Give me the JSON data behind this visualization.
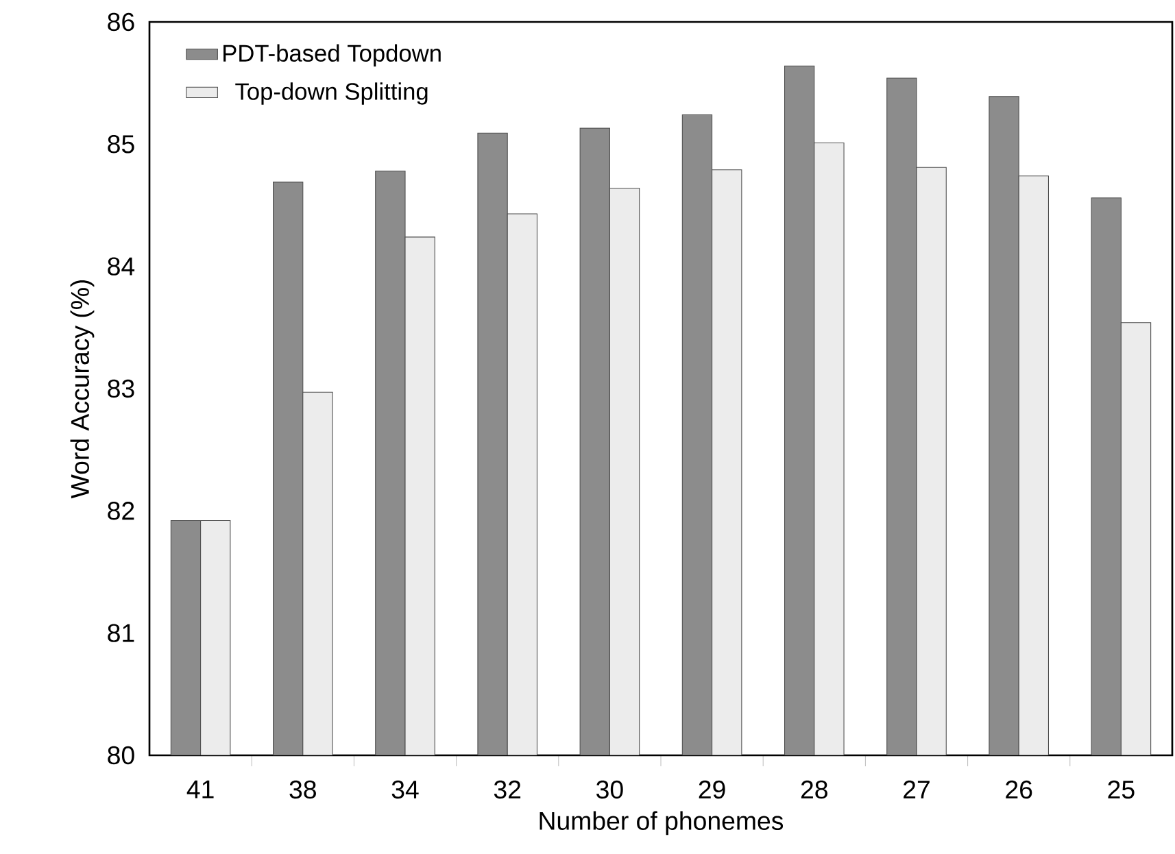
{
  "chart_data": {
    "type": "bar",
    "xlabel": "Number of phonemes",
    "ylabel": "Word Accuracy (%)",
    "categories": [
      "41",
      "38",
      "34",
      "32",
      "30",
      "29",
      "28",
      "27",
      "26",
      "25"
    ],
    "series": [
      {
        "name": "PDT-based Topdown",
        "color": "#8c8c8c",
        "values": [
          81.92,
          84.69,
          84.78,
          85.09,
          85.13,
          85.24,
          85.64,
          85.54,
          85.39,
          84.56
        ]
      },
      {
        "name": "Top-down Splitting",
        "color": "#ececec",
        "values": [
          81.92,
          82.97,
          84.24,
          84.43,
          84.64,
          84.79,
          85.01,
          84.81,
          84.74,
          83.54
        ]
      }
    ],
    "ylim": [
      80,
      86
    ],
    "yticks": [
      80,
      81,
      82,
      83,
      84,
      85,
      86
    ],
    "legend": "top left"
  }
}
